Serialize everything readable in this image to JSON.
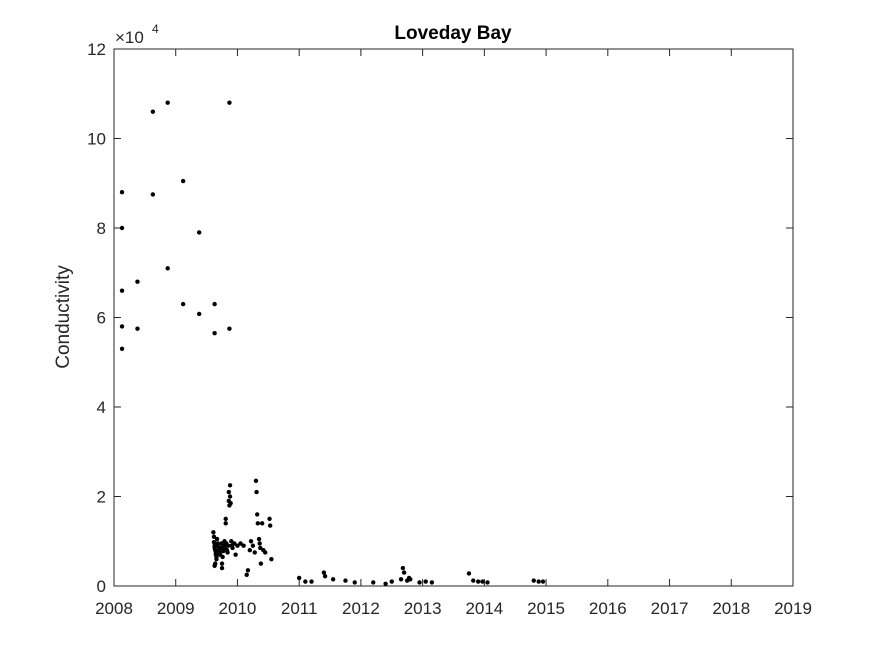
{
  "chart_data": {
    "type": "scatter",
    "title": "Loveday Bay",
    "xlabel": "",
    "ylabel": "Conductivity",
    "y_exponent_label": "×10",
    "y_exponent_power": "4",
    "xlim": [
      2008,
      2019
    ],
    "ylim": [
      0,
      12
    ],
    "x_ticks": [
      2008,
      2009,
      2010,
      2011,
      2012,
      2013,
      2014,
      2015,
      2016,
      2017,
      2018,
      2019
    ],
    "x_tick_labels": [
      "2008",
      "2009",
      "2010",
      "2011",
      "2012",
      "2013",
      "2014",
      "2015",
      "2016",
      "2017",
      "2018",
      "2019"
    ],
    "y_ticks": [
      0,
      2,
      4,
      6,
      8,
      10,
      12
    ],
    "y_tick_labels": [
      "0",
      "2",
      "4",
      "6",
      "8",
      "10",
      "12"
    ],
    "grid": false,
    "marker_color": "#000000",
    "series": [
      {
        "points": [
          [
            2008.13,
            8.8
          ],
          [
            2008.13,
            8.0
          ],
          [
            2008.13,
            6.6
          ],
          [
            2008.13,
            5.8
          ],
          [
            2008.13,
            5.3
          ],
          [
            2008.38,
            6.8
          ],
          [
            2008.38,
            5.75
          ],
          [
            2008.63,
            10.6
          ],
          [
            2008.63,
            8.75
          ],
          [
            2008.87,
            10.8
          ],
          [
            2008.87,
            7.1
          ],
          [
            2009.12,
            9.05
          ],
          [
            2009.12,
            6.3
          ],
          [
            2009.38,
            7.9
          ],
          [
            2009.38,
            6.08
          ],
          [
            2009.63,
            6.3
          ],
          [
            2009.63,
            5.65
          ],
          [
            2009.87,
            10.8
          ],
          [
            2009.87,
            5.75
          ],
          [
            2009.61,
            1.2
          ],
          [
            2009.62,
            1.1
          ],
          [
            2009.62,
            0.98
          ],
          [
            2009.63,
            0.9
          ],
          [
            2009.63,
            0.85
          ],
          [
            2009.64,
            0.8
          ],
          [
            2009.65,
            0.75
          ],
          [
            2009.65,
            0.7
          ],
          [
            2009.66,
            0.65
          ],
          [
            2009.66,
            0.6
          ],
          [
            2009.64,
            0.5
          ],
          [
            2009.63,
            0.45
          ],
          [
            2009.67,
            1.05
          ],
          [
            2009.68,
            0.95
          ],
          [
            2009.69,
            0.88
          ],
          [
            2009.7,
            0.8
          ],
          [
            2009.71,
            0.75
          ],
          [
            2009.72,
            0.7
          ],
          [
            2009.73,
            0.85
          ],
          [
            2009.74,
            0.95
          ],
          [
            2009.75,
            0.5
          ],
          [
            2009.75,
            0.4
          ],
          [
            2009.76,
            0.65
          ],
          [
            2009.77,
            0.78
          ],
          [
            2009.78,
            0.9
          ],
          [
            2009.79,
            1.0
          ],
          [
            2009.8,
            0.85
          ],
          [
            2009.81,
            1.5
          ],
          [
            2009.81,
            1.4
          ],
          [
            2009.82,
            0.95
          ],
          [
            2009.83,
            0.8
          ],
          [
            2009.84,
            0.75
          ],
          [
            2009.85,
            0.9
          ],
          [
            2009.86,
            2.1
          ],
          [
            2009.86,
            1.9
          ],
          [
            2009.87,
            1.8
          ],
          [
            2009.88,
            2.25
          ],
          [
            2009.88,
            2.0
          ],
          [
            2009.89,
            1.85
          ],
          [
            2009.9,
            1.0
          ],
          [
            2009.91,
            0.9
          ],
          [
            2009.92,
            0.85
          ],
          [
            2009.95,
            0.95
          ],
          [
            2009.97,
            0.7
          ],
          [
            2010.0,
            0.9
          ],
          [
            2010.05,
            0.95
          ],
          [
            2010.1,
            0.9
          ],
          [
            2010.15,
            0.25
          ],
          [
            2010.17,
            0.35
          ],
          [
            2010.2,
            0.8
          ],
          [
            2010.22,
            1.0
          ],
          [
            2010.25,
            0.9
          ],
          [
            2010.28,
            0.75
          ],
          [
            2010.3,
            2.35
          ],
          [
            2010.31,
            2.1
          ],
          [
            2010.32,
            1.6
          ],
          [
            2010.33,
            1.4
          ],
          [
            2010.35,
            1.05
          ],
          [
            2010.36,
            0.95
          ],
          [
            2010.37,
            0.85
          ],
          [
            2010.38,
            0.5
          ],
          [
            2010.4,
            1.4
          ],
          [
            2010.42,
            0.8
          ],
          [
            2010.45,
            0.75
          ],
          [
            2010.52,
            1.5
          ],
          [
            2010.53,
            1.35
          ],
          [
            2010.55,
            0.6
          ],
          [
            2011.0,
            0.18
          ],
          [
            2011.1,
            0.1
          ],
          [
            2011.2,
            0.1
          ],
          [
            2011.4,
            0.3
          ],
          [
            2011.42,
            0.22
          ],
          [
            2011.55,
            0.15
          ],
          [
            2011.75,
            0.12
          ],
          [
            2011.9,
            0.08
          ],
          [
            2012.2,
            0.08
          ],
          [
            2012.4,
            0.05
          ],
          [
            2012.5,
            0.1
          ],
          [
            2012.65,
            0.15
          ],
          [
            2012.68,
            0.4
          ],
          [
            2012.7,
            0.3
          ],
          [
            2012.75,
            0.12
          ],
          [
            2012.78,
            0.18
          ],
          [
            2012.8,
            0.15
          ],
          [
            2012.95,
            0.08
          ],
          [
            2013.05,
            0.1
          ],
          [
            2013.15,
            0.08
          ],
          [
            2013.75,
            0.28
          ],
          [
            2013.82,
            0.12
          ],
          [
            2013.9,
            0.1
          ],
          [
            2013.97,
            0.1
          ],
          [
            2014.05,
            0.08
          ],
          [
            2014.8,
            0.12
          ],
          [
            2014.88,
            0.1
          ],
          [
            2014.95,
            0.1
          ]
        ]
      }
    ]
  }
}
